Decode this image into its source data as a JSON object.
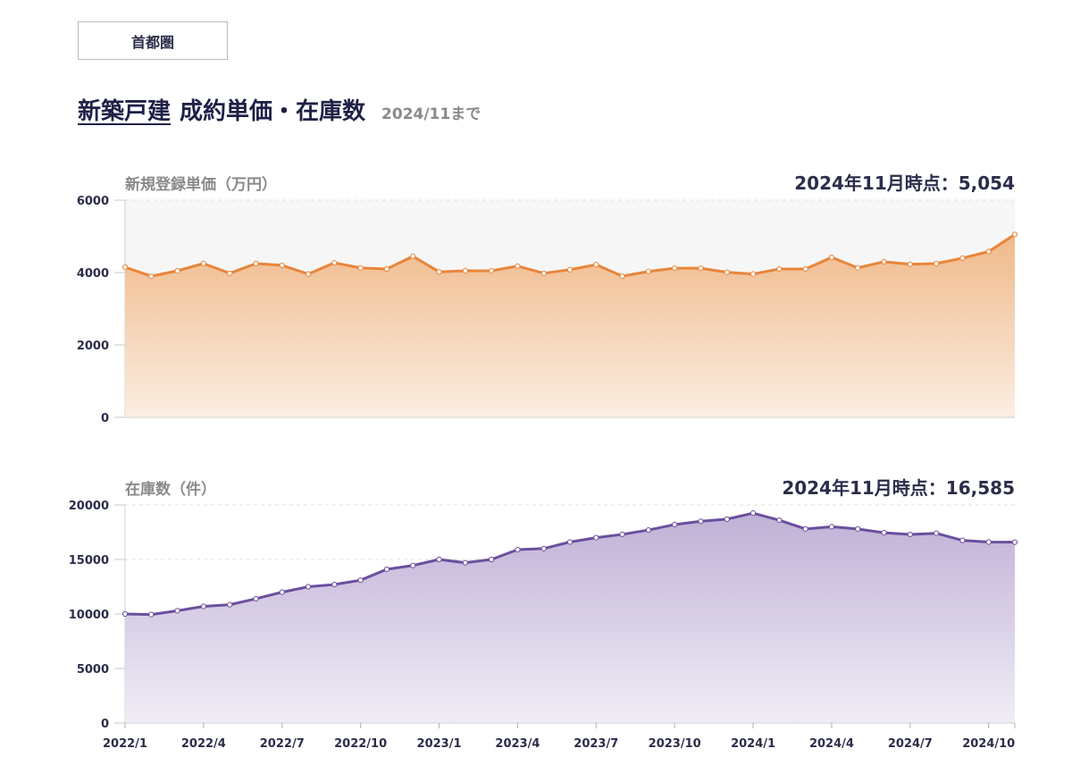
{
  "region_button": {
    "label": "首都圏"
  },
  "heading": {
    "link": "新築戸建",
    "rest": "成約単価・在庫数",
    "until": "2024/11まで"
  },
  "chart_data": [
    {
      "type": "area",
      "title": "新規登録単価（万円）",
      "annotation": "2024年11月時点：5,054",
      "color": "#e8853a",
      "fill_top": "#f0b98a",
      "fill_bottom": "#fbeee2",
      "plot_bg": "#f6f6f6",
      "ylim": [
        0,
        6000
      ],
      "yticks": [
        0,
        2000,
        4000,
        6000
      ],
      "grid": true,
      "x": [
        "2022/1",
        "2022/2",
        "2022/3",
        "2022/4",
        "2022/5",
        "2022/6",
        "2022/7",
        "2022/8",
        "2022/9",
        "2022/10",
        "2022/11",
        "2022/12",
        "2023/1",
        "2023/2",
        "2023/3",
        "2023/4",
        "2023/5",
        "2023/6",
        "2023/7",
        "2023/8",
        "2023/9",
        "2023/10",
        "2023/11",
        "2023/12",
        "2024/1",
        "2024/2",
        "2024/3",
        "2024/4",
        "2024/5",
        "2024/6",
        "2024/7",
        "2024/8",
        "2024/9",
        "2024/10",
        "2024/11"
      ],
      "values": [
        4150,
        3900,
        4050,
        4250,
        3980,
        4250,
        4200,
        3960,
        4270,
        4130,
        4100,
        4450,
        4020,
        4050,
        4050,
        4180,
        3980,
        4080,
        4220,
        3900,
        4030,
        4120,
        4120,
        4010,
        3960,
        4100,
        4100,
        4420,
        4130,
        4300,
        4230,
        4250,
        4400,
        4580,
        5054
      ]
    },
    {
      "type": "area",
      "title": "在庫数（件）",
      "annotation": "2024年11月時点：16,585",
      "color": "#6b4f9e",
      "fill_top": "#bfb1d6",
      "fill_bottom": "#f1edf6",
      "plot_bg": "#ffffff",
      "ylim": [
        0,
        20000
      ],
      "yticks": [
        0,
        5000,
        10000,
        15000,
        20000
      ],
      "grid": true,
      "x": [
        "2022/1",
        "2022/2",
        "2022/3",
        "2022/4",
        "2022/5",
        "2022/6",
        "2022/7",
        "2022/8",
        "2022/9",
        "2022/10",
        "2022/11",
        "2022/12",
        "2023/1",
        "2023/2",
        "2023/3",
        "2023/4",
        "2023/5",
        "2023/6",
        "2023/7",
        "2023/8",
        "2023/9",
        "2023/10",
        "2023/11",
        "2023/12",
        "2024/1",
        "2024/2",
        "2024/3",
        "2024/4",
        "2024/5",
        "2024/6",
        "2024/7",
        "2024/8",
        "2024/9",
        "2024/10",
        "2024/11"
      ],
      "xtick_labels": [
        "2022/1",
        "2022/4",
        "2022/7",
        "2022/10",
        "2023/1",
        "2023/4",
        "2023/7",
        "2023/10",
        "2024/1",
        "2024/4",
        "2024/7",
        "2024/10"
      ],
      "values": [
        10000,
        9950,
        10300,
        10700,
        10850,
        11400,
        12000,
        12500,
        12700,
        13100,
        14100,
        14450,
        15000,
        14700,
        15000,
        15900,
        16000,
        16600,
        17000,
        17300,
        17700,
        18200,
        18500,
        18700,
        19250,
        18600,
        17800,
        18000,
        17800,
        17450,
        17300,
        17400,
        16750,
        16600,
        16585
      ]
    }
  ]
}
